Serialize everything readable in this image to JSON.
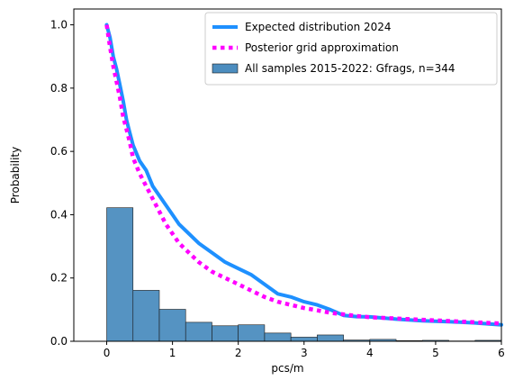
{
  "chart_data": {
    "type": "line",
    "xlabel": "pcs/m",
    "ylabel": "Probability",
    "xlim": [
      -0.5,
      6
    ],
    "ylim": [
      0,
      1.05
    ],
    "xticks": [
      0,
      1,
      2,
      3,
      4,
      5,
      6
    ],
    "yticks": [
      0.0,
      0.2,
      0.4,
      0.6,
      0.8,
      1.0
    ],
    "grid": false,
    "legend_position": "top-right",
    "histogram": {
      "name": "All samples 2015-2022: Gfrags, n=344",
      "color": "#4c8dbf",
      "bin_edges": [
        0,
        0.4,
        0.8,
        1.2,
        1.6,
        2.0,
        2.4,
        2.8,
        3.2,
        3.6,
        4.0,
        4.4,
        4.8,
        5.2,
        5.6,
        6.0
      ],
      "values": [
        0.422,
        0.161,
        0.101,
        0.06,
        0.049,
        0.052,
        0.026,
        0.013,
        0.02,
        0.004,
        0.006,
        0.002,
        0.003,
        0.001,
        0.003
      ]
    },
    "series": [
      {
        "name": "Expected distribution 2024",
        "color": "#1e90ff",
        "style": "solid",
        "x": [
          0,
          0.05,
          0.1,
          0.15,
          0.2,
          0.25,
          0.3,
          0.35,
          0.4,
          0.5,
          0.6,
          0.7,
          0.8,
          0.9,
          1.0,
          1.1,
          1.2,
          1.4,
          1.6,
          1.8,
          2.0,
          2.2,
          2.4,
          2.6,
          2.8,
          3.0,
          3.2,
          3.4,
          3.6,
          3.8,
          4.0,
          4.4,
          4.8,
          5.2,
          5.6,
          6.0
        ],
        "y": [
          1.0,
          0.96,
          0.9,
          0.86,
          0.81,
          0.76,
          0.7,
          0.66,
          0.62,
          0.57,
          0.54,
          0.49,
          0.46,
          0.43,
          0.4,
          0.37,
          0.35,
          0.31,
          0.28,
          0.25,
          0.23,
          0.21,
          0.18,
          0.15,
          0.14,
          0.125,
          0.115,
          0.1,
          0.082,
          0.078,
          0.077,
          0.07,
          0.065,
          0.062,
          0.058,
          0.052
        ]
      },
      {
        "name": "Posterior grid approximation",
        "color": "#ff00ff",
        "style": "dotted",
        "x": [
          0,
          0.05,
          0.1,
          0.15,
          0.2,
          0.25,
          0.3,
          0.35,
          0.4,
          0.5,
          0.6,
          0.7,
          0.8,
          0.9,
          1.0,
          1.1,
          1.2,
          1.4,
          1.6,
          1.8,
          2.0,
          2.2,
          2.4,
          2.6,
          2.8,
          3.0,
          3.2,
          3.4,
          3.6,
          3.8,
          4.0,
          4.4,
          4.8,
          5.2,
          5.6,
          6.0
        ],
        "y": [
          1.0,
          0.93,
          0.87,
          0.82,
          0.77,
          0.71,
          0.67,
          0.63,
          0.58,
          0.53,
          0.49,
          0.45,
          0.41,
          0.37,
          0.34,
          0.31,
          0.29,
          0.25,
          0.22,
          0.2,
          0.18,
          0.16,
          0.14,
          0.125,
          0.115,
          0.105,
          0.098,
          0.09,
          0.085,
          0.08,
          0.076,
          0.072,
          0.068,
          0.064,
          0.06,
          0.056
        ]
      }
    ]
  }
}
